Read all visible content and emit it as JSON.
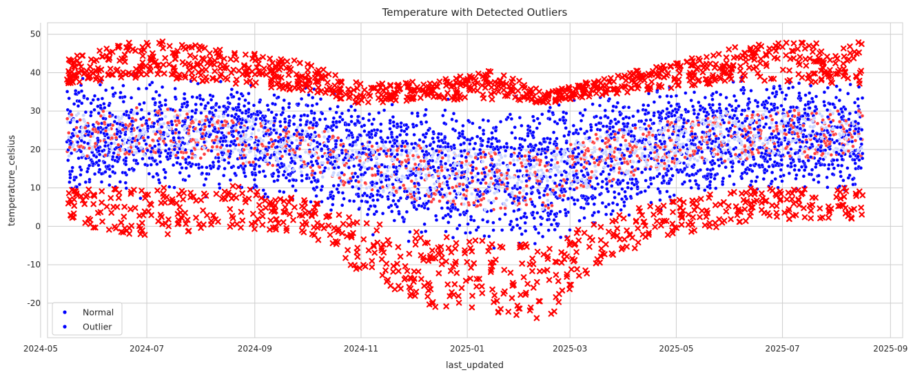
{
  "chart_data": {
    "type": "scatter",
    "title": "Temperature with Detected Outliers",
    "xlabel": "last_updated",
    "ylabel": "temperature_celsius",
    "x_range": [
      "2024-05-05",
      "2025-09-08"
    ],
    "ylim": [
      -29,
      53
    ],
    "x_ticks": [
      "2024-05",
      "2024-07",
      "2024-09",
      "2024-11",
      "2025-01",
      "2025-03",
      "2025-05",
      "2025-07",
      "2025-09"
    ],
    "y_ticks": [
      -20,
      -10,
      0,
      10,
      20,
      30,
      40,
      50
    ],
    "grid": true,
    "legend_position": "lower-left",
    "series": [
      {
        "name": "Normal",
        "color": "#0000ff",
        "marker": "circle",
        "envelope": [
          {
            "date": "2024-05-16",
            "low": 6,
            "high": 40,
            "center": 24
          },
          {
            "date": "2024-07-01",
            "low": 6,
            "high": 42,
            "center": 25
          },
          {
            "date": "2024-08-15",
            "low": 7,
            "high": 40,
            "center": 23
          },
          {
            "date": "2024-10-01",
            "low": 3,
            "high": 38,
            "center": 20
          },
          {
            "date": "2024-11-01",
            "low": -2,
            "high": 35,
            "center": 16
          },
          {
            "date": "2024-12-15",
            "low": -6,
            "high": 36,
            "center": 13
          },
          {
            "date": "2025-01-15",
            "low": -8,
            "high": 36,
            "center": 12
          },
          {
            "date": "2025-02-15",
            "low": -8,
            "high": 35,
            "center": 12
          },
          {
            "date": "2025-03-15",
            "low": -3,
            "high": 37,
            "center": 17
          },
          {
            "date": "2025-05-01",
            "low": 4,
            "high": 39,
            "center": 22
          },
          {
            "date": "2025-06-15",
            "low": 6,
            "high": 41,
            "center": 24
          },
          {
            "date": "2025-08-16",
            "low": 6,
            "high": 40,
            "center": 24
          }
        ]
      },
      {
        "name": "Outlier",
        "color": "#ff0000",
        "marker": "x",
        "envelope": [
          {
            "date": "2024-05-16",
            "low": 1,
            "high": 44
          },
          {
            "date": "2024-07-01",
            "low": -3,
            "high": 49
          },
          {
            "date": "2024-08-15",
            "low": 0,
            "high": 46
          },
          {
            "date": "2024-10-01",
            "low": -2,
            "high": 43
          },
          {
            "date": "2024-11-01",
            "low": -12,
            "high": 37
          },
          {
            "date": "2024-12-15",
            "low": -22,
            "high": 38
          },
          {
            "date": "2025-01-15",
            "low": -24,
            "high": 41
          },
          {
            "date": "2025-02-15",
            "low": -25,
            "high": 35
          },
          {
            "date": "2025-03-15",
            "low": -10,
            "high": 38
          },
          {
            "date": "2025-05-01",
            "low": -2,
            "high": 43
          },
          {
            "date": "2025-06-15",
            "low": 1,
            "high": 48
          },
          {
            "date": "2025-08-16",
            "low": 2,
            "high": 48
          }
        ]
      }
    ]
  }
}
